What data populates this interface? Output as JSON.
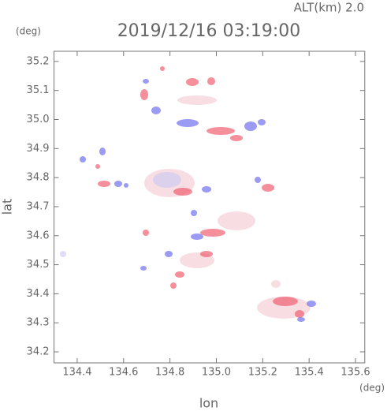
{
  "header": {
    "altitude": "ALT(km) 2.0",
    "y_unit": "(deg)",
    "x_unit": "(deg)"
  },
  "chart_data": {
    "type": "map",
    "title": "2019/12/16 03:19:00",
    "x_label": "lon",
    "y_label": "lat",
    "xlim": [
      134.3,
      135.64
    ],
    "ylim": [
      34.162,
      35.235
    ],
    "xticks": [
      134.4,
      134.6,
      134.8,
      {
        "value": 135,
        "label": "135.0"
      },
      135.2,
      135.4,
      135.6
    ],
    "yticks": [
      34.2,
      34.3,
      34.4,
      34.5,
      34.6,
      34.7,
      34.8,
      34.9,
      {
        "value": 35,
        "label": "35.0"
      },
      35.1,
      35.2
    ]
  }
}
